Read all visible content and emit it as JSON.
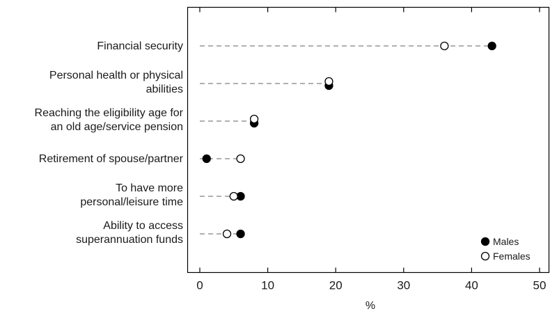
{
  "chart_data": {
    "type": "scatter",
    "title": "",
    "xlabel": "%",
    "ylabel": "",
    "xlim": [
      0,
      50
    ],
    "xticks": [
      "0",
      "10",
      "20",
      "30",
      "40",
      "50"
    ],
    "grid": false,
    "legend_position": "bottom-right",
    "categories": [
      [
        "Financial security"
      ],
      [
        "Personal health or physical",
        "abilities"
      ],
      [
        "Reaching the eligibility age for",
        "an old age/service pension"
      ],
      [
        "Retirement of spouse/partner"
      ],
      [
        "To have more",
        "personal/leisure time"
      ],
      [
        "Ability to access",
        "superannuation funds"
      ]
    ],
    "series": [
      {
        "name": "Males",
        "marker": "filled-circle",
        "values": [
          43,
          19,
          8,
          1,
          6,
          6
        ]
      },
      {
        "name": "Females",
        "marker": "open-circle",
        "values": [
          36,
          19,
          8,
          6,
          5,
          4
        ]
      }
    ]
  },
  "colors": {
    "ink": "#000000",
    "dash": "#808080",
    "background": "#ffffff"
  }
}
